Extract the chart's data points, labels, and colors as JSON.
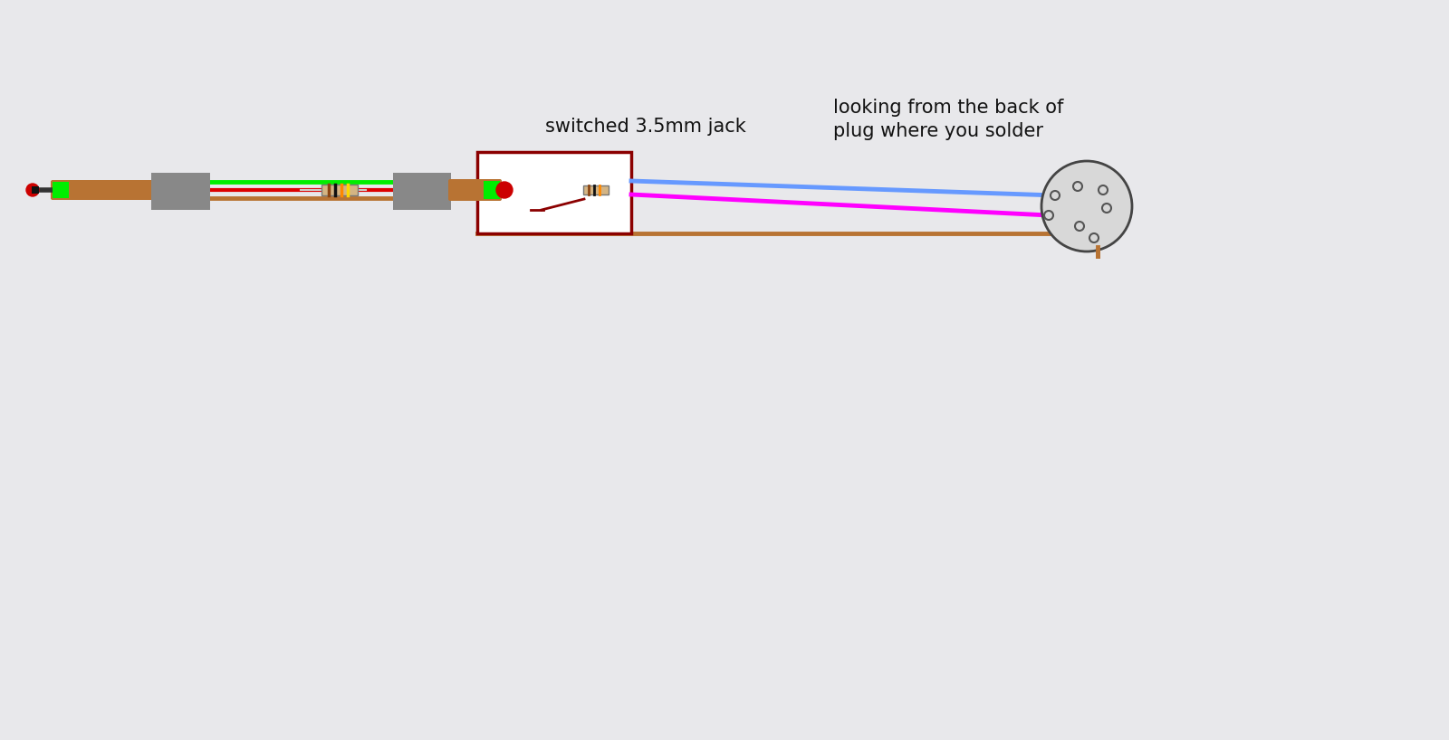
{
  "bg_color": "#e8e8eb",
  "title_jack": "switched 3.5mm jack",
  "title_plug": "looking from the back of\nplug where you solder",
  "title_fontsize": 15,
  "wire_green_color": "#00ee00",
  "wire_red_color": "#dd0000",
  "wire_brown_color": "#b87333",
  "wire_blue_color": "#6699ff",
  "wire_magenta_color": "#ff00ff",
  "plug_body_color": "#b87333",
  "plug_tip_color": "#cc0000",
  "plug_band_color": "#00ee00",
  "connector_color": "#888888",
  "jack_box_color": "#ffffff",
  "jack_border_color": "#8b0000",
  "switch_color": "#8b0000",
  "circle_bg": "#d8d8d8",
  "circle_edge": "#444444",
  "hole_edge": "#555555"
}
